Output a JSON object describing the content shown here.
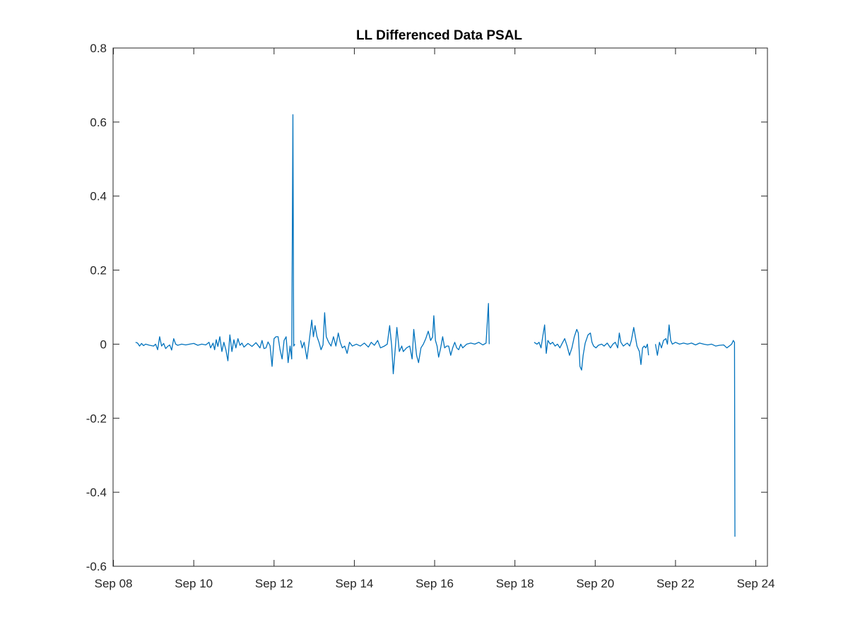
{
  "chart_data": {
    "type": "line",
    "title": "LL Differenced Data PSAL",
    "xlabel": "",
    "ylabel": "",
    "x_tick_labels": [
      "Sep 08",
      "Sep 10",
      "Sep 12",
      "Sep 14",
      "Sep 16",
      "Sep 18",
      "Sep 20",
      "Sep 22",
      "Sep 24"
    ],
    "y_tick_labels": [
      "0.8",
      "0.6",
      "0.4",
      "0.2",
      "0",
      "-0.2",
      "-0.4",
      "-0.6"
    ],
    "x_axis": {
      "kind": "date",
      "start": "Sep 08",
      "end": "Sep 24"
    },
    "xlim": [
      "Sep 07.99",
      "Sep 24.29"
    ],
    "ylim": [
      -0.6,
      0.8
    ],
    "grid": false,
    "series": [
      {
        "color": "#0072BD",
        "segments": [
          [
            [
              "Sep 08.55",
              0.005
            ],
            [
              "Sep 08.60",
              0.003
            ],
            [
              "Sep 08.65",
              -0.005
            ],
            [
              "Sep 08.70",
              0.002
            ],
            [
              "Sep 08.75",
              -0.004
            ],
            [
              "Sep 08.80",
              0.0
            ],
            [
              "Sep 08.90",
              -0.003
            ],
            [
              "Sep 09.00",
              -0.005
            ],
            [
              "Sep 09.05",
              0.0
            ],
            [
              "Sep 09.10",
              -0.015
            ],
            [
              "Sep 09.15",
              0.02
            ],
            [
              "Sep 09.20",
              -0.005
            ],
            [
              "Sep 09.25",
              0.002
            ],
            [
              "Sep 09.30",
              -0.012
            ],
            [
              "Sep 09.35",
              -0.006
            ],
            [
              "Sep 09.40",
              -0.002
            ],
            [
              "Sep 09.45",
              -0.016
            ],
            [
              "Sep 09.50",
              0.015
            ],
            [
              "Sep 09.55",
              0.0
            ],
            [
              "Sep 09.60",
              -0.003
            ],
            [
              "Sep 09.70",
              0.0
            ],
            [
              "Sep 09.80",
              -0.002
            ],
            [
              "Sep 09.90",
              0.0
            ],
            [
              "Sep 10.00",
              0.002
            ],
            [
              "Sep 10.10",
              -0.003
            ],
            [
              "Sep 10.20",
              0.0
            ],
            [
              "Sep 10.30",
              -0.002
            ],
            [
              "Sep 10.38",
              0.005
            ],
            [
              "Sep 10.42",
              -0.01
            ],
            [
              "Sep 10.48",
              0.003
            ],
            [
              "Sep 10.52",
              -0.015
            ],
            [
              "Sep 10.56",
              0.012
            ],
            [
              "Sep 10.60",
              -0.006
            ],
            [
              "Sep 10.65",
              0.02
            ],
            [
              "Sep 10.70",
              -0.02
            ],
            [
              "Sep 10.75",
              0.005
            ],
            [
              "Sep 10.80",
              -0.015
            ],
            [
              "Sep 10.85",
              -0.045
            ],
            [
              "Sep 10.90",
              0.025
            ],
            [
              "Sep 10.95",
              -0.02
            ],
            [
              "Sep 11.00",
              0.012
            ],
            [
              "Sep 11.05",
              -0.01
            ],
            [
              "Sep 11.10",
              0.015
            ],
            [
              "Sep 11.15",
              -0.003
            ],
            [
              "Sep 11.20",
              0.003
            ],
            [
              "Sep 11.25",
              -0.008
            ],
            [
              "Sep 11.35",
              0.002
            ],
            [
              "Sep 11.45",
              -0.006
            ],
            [
              "Sep 11.55",
              0.004
            ],
            [
              "Sep 11.65",
              -0.01
            ],
            [
              "Sep 11.70",
              0.01
            ],
            [
              "Sep 11.75",
              -0.012
            ],
            [
              "Sep 11.80",
              -0.01
            ],
            [
              "Sep 11.85",
              0.006
            ],
            [
              "Sep 11.90",
              -0.004
            ],
            [
              "Sep 11.95",
              -0.06
            ],
            [
              "Sep 12.00",
              0.015
            ],
            [
              "Sep 12.05",
              0.02
            ],
            [
              "Sep 12.10",
              0.02
            ],
            [
              "Sep 12.15",
              -0.015
            ],
            [
              "Sep 12.20",
              -0.04
            ],
            [
              "Sep 12.25",
              0.01
            ],
            [
              "Sep 12.30",
              0.02
            ],
            [
              "Sep 12.35",
              -0.05
            ],
            [
              "Sep 12.40",
              -0.005
            ],
            [
              "Sep 12.44",
              -0.04
            ],
            [
              "Sep 12.47",
              0.62
            ],
            [
              "Sep 12.49",
              -0.005
            ],
            [
              "Sep 12.52",
              0.0
            ]
          ],
          [
            [
              "Sep 12.66",
              0.01
            ],
            [
              "Sep 12.70",
              -0.01
            ],
            [
              "Sep 12.75",
              0.005
            ],
            [
              "Sep 12.82",
              -0.04
            ],
            [
              "Sep 12.88",
              0.012
            ],
            [
              "Sep 12.94",
              0.065
            ],
            [
              "Sep 12.98",
              0.02
            ],
            [
              "Sep 13.02",
              0.05
            ],
            [
              "Sep 13.07",
              0.02
            ],
            [
              "Sep 13.12",
              0.005
            ],
            [
              "Sep 13.17",
              -0.015
            ],
            [
              "Sep 13.22",
              -0.002
            ],
            [
              "Sep 13.26",
              0.085
            ],
            [
              "Sep 13.30",
              0.02
            ],
            [
              "Sep 13.36",
              0.005
            ],
            [
              "Sep 13.42",
              -0.005
            ],
            [
              "Sep 13.48",
              0.02
            ],
            [
              "Sep 13.54",
              -0.005
            ],
            [
              "Sep 13.60",
              0.03
            ],
            [
              "Sep 13.65",
              0.005
            ],
            [
              "Sep 13.70",
              -0.01
            ],
            [
              "Sep 13.76",
              -0.005
            ],
            [
              "Sep 13.82",
              -0.025
            ],
            [
              "Sep 13.88",
              0.005
            ],
            [
              "Sep 13.95",
              -0.005
            ],
            [
              "Sep 14.05",
              0.0
            ],
            [
              "Sep 14.15",
              -0.005
            ],
            [
              "Sep 14.25",
              0.003
            ],
            [
              "Sep 14.35",
              -0.008
            ],
            [
              "Sep 14.42",
              0.005
            ],
            [
              "Sep 14.50",
              -0.003
            ],
            [
              "Sep 14.58",
              0.01
            ],
            [
              "Sep 14.65",
              -0.01
            ],
            [
              "Sep 14.75",
              -0.005
            ],
            [
              "Sep 14.82",
              0.0
            ],
            [
              "Sep 14.88",
              0.05
            ],
            [
              "Sep 14.93",
              -0.005
            ],
            [
              "Sep 14.97",
              -0.08
            ],
            [
              "Sep 15.02",
              -0.01
            ],
            [
              "Sep 15.06",
              0.045
            ],
            [
              "Sep 15.12",
              -0.02
            ],
            [
              "Sep 15.18",
              -0.005
            ],
            [
              "Sep 15.22",
              -0.02
            ],
            [
              "Sep 15.30",
              -0.01
            ],
            [
              "Sep 15.38",
              -0.005
            ],
            [
              "Sep 15.44",
              -0.04
            ],
            [
              "Sep 15.48",
              0.04
            ],
            [
              "Sep 15.55",
              -0.03
            ],
            [
              "Sep 15.60",
              -0.05
            ],
            [
              "Sep 15.66",
              -0.01
            ],
            [
              "Sep 15.72",
              0.0
            ],
            [
              "Sep 15.78",
              0.015
            ],
            [
              "Sep 15.84",
              0.035
            ],
            [
              "Sep 15.90",
              0.01
            ],
            [
              "Sep 15.95",
              0.02
            ],
            [
              "Sep 15.98",
              0.077
            ],
            [
              "Sep 16.02",
              0.01
            ],
            [
              "Sep 16.06",
              -0.005
            ],
            [
              "Sep 16.10",
              -0.035
            ],
            [
              "Sep 16.15",
              -0.01
            ],
            [
              "Sep 16.20",
              0.02
            ],
            [
              "Sep 16.25",
              -0.01
            ],
            [
              "Sep 16.30",
              -0.005
            ],
            [
              "Sep 16.35",
              -0.005
            ],
            [
              "Sep 16.40",
              -0.03
            ],
            [
              "Sep 16.45",
              -0.01
            ],
            [
              "Sep 16.50",
              0.005
            ],
            [
              "Sep 16.55",
              -0.01
            ],
            [
              "Sep 16.60",
              -0.015
            ],
            [
              "Sep 16.65",
              0.0
            ],
            [
              "Sep 16.70",
              -0.01
            ],
            [
              "Sep 16.80",
              0.0
            ],
            [
              "Sep 16.90",
              0.003
            ],
            [
              "Sep 17.00",
              0.0
            ],
            [
              "Sep 17.10",
              0.005
            ],
            [
              "Sep 17.20",
              -0.002
            ],
            [
              "Sep 17.28",
              0.003
            ],
            [
              "Sep 17.34",
              0.11
            ],
            [
              "Sep 17.36",
              0.0
            ]
          ],
          [
            [
              "Sep 18.48",
              0.005
            ],
            [
              "Sep 18.55",
              0.0
            ],
            [
              "Sep 18.60",
              0.005
            ],
            [
              "Sep 18.65",
              -0.01
            ],
            [
              "Sep 18.70",
              0.025
            ],
            [
              "Sep 18.74",
              0.052
            ],
            [
              "Sep 18.78",
              -0.025
            ],
            [
              "Sep 18.82",
              0.01
            ],
            [
              "Sep 18.88",
              0.0
            ],
            [
              "Sep 18.94",
              0.005
            ],
            [
              "Sep 19.00",
              -0.005
            ],
            [
              "Sep 19.06",
              0.0
            ],
            [
              "Sep 19.12",
              -0.01
            ],
            [
              "Sep 19.18",
              0.003
            ],
            [
              "Sep 19.24",
              0.015
            ],
            [
              "Sep 19.30",
              -0.005
            ],
            [
              "Sep 19.36",
              -0.03
            ],
            [
              "Sep 19.42",
              -0.01
            ],
            [
              "Sep 19.48",
              0.02
            ],
            [
              "Sep 19.54",
              0.04
            ],
            [
              "Sep 19.58",
              0.03
            ],
            [
              "Sep 19.62",
              -0.06
            ],
            [
              "Sep 19.66",
              -0.07
            ],
            [
              "Sep 19.70",
              -0.03
            ],
            [
              "Sep 19.75",
              0.003
            ],
            [
              "Sep 19.82",
              0.025
            ],
            [
              "Sep 19.88",
              0.03
            ],
            [
              "Sep 19.92",
              0.005
            ],
            [
              "Sep 19.96",
              -0.005
            ],
            [
              "Sep 20.02",
              -0.01
            ],
            [
              "Sep 20.08",
              -0.003
            ],
            [
              "Sep 20.16",
              0.0
            ],
            [
              "Sep 20.22",
              -0.005
            ],
            [
              "Sep 20.30",
              0.003
            ],
            [
              "Sep 20.38",
              -0.01
            ],
            [
              "Sep 20.44",
              0.0
            ],
            [
              "Sep 20.50",
              0.005
            ],
            [
              "Sep 20.56",
              -0.01
            ],
            [
              "Sep 20.60",
              0.03
            ],
            [
              "Sep 20.64",
              0.005
            ],
            [
              "Sep 20.70",
              -0.005
            ],
            [
              "Sep 20.76",
              0.0
            ],
            [
              "Sep 20.80",
              0.003
            ],
            [
              "Sep 20.86",
              -0.005
            ],
            [
              "Sep 20.90",
              0.01
            ],
            [
              "Sep 20.96",
              0.045
            ],
            [
              "Sep 21.00",
              0.02
            ],
            [
              "Sep 21.04",
              -0.005
            ],
            [
              "Sep 21.10",
              -0.02
            ],
            [
              "Sep 21.14",
              -0.055
            ],
            [
              "Sep 21.18",
              -0.01
            ],
            [
              "Sep 21.22",
              -0.005
            ],
            [
              "Sep 21.26",
              -0.01
            ],
            [
              "Sep 21.30",
              0.0
            ],
            [
              "Sep 21.33",
              -0.03
            ]
          ],
          [
            [
              "Sep 21.50",
              0.0
            ],
            [
              "Sep 21.55",
              -0.03
            ],
            [
              "Sep 21.60",
              0.005
            ],
            [
              "Sep 21.65",
              -0.01
            ],
            [
              "Sep 21.70",
              0.01
            ],
            [
              "Sep 21.76",
              0.015
            ],
            [
              "Sep 21.80",
              0.0
            ],
            [
              "Sep 21.84",
              0.052
            ],
            [
              "Sep 21.88",
              0.01
            ],
            [
              "Sep 21.92",
              0.0
            ],
            [
              "Sep 22.00",
              0.005
            ],
            [
              "Sep 22.10",
              0.0
            ],
            [
              "Sep 22.20",
              0.003
            ],
            [
              "Sep 22.30",
              0.0
            ],
            [
              "Sep 22.40",
              0.003
            ],
            [
              "Sep 22.50",
              -0.002
            ],
            [
              "Sep 22.60",
              0.003
            ],
            [
              "Sep 22.70",
              0.0
            ],
            [
              "Sep 22.80",
              -0.002
            ],
            [
              "Sep 22.90",
              0.0
            ],
            [
              "Sep 23.00",
              -0.005
            ],
            [
              "Sep 23.10",
              -0.003
            ],
            [
              "Sep 23.20",
              -0.002
            ],
            [
              "Sep 23.28",
              -0.01
            ],
            [
              "Sep 23.34",
              -0.005
            ],
            [
              "Sep 23.40",
              0.0
            ],
            [
              "Sep 23.44",
              0.01
            ],
            [
              "Sep 23.47",
              0.005
            ],
            [
              "Sep 23.48",
              -0.52
            ]
          ]
        ]
      }
    ]
  }
}
